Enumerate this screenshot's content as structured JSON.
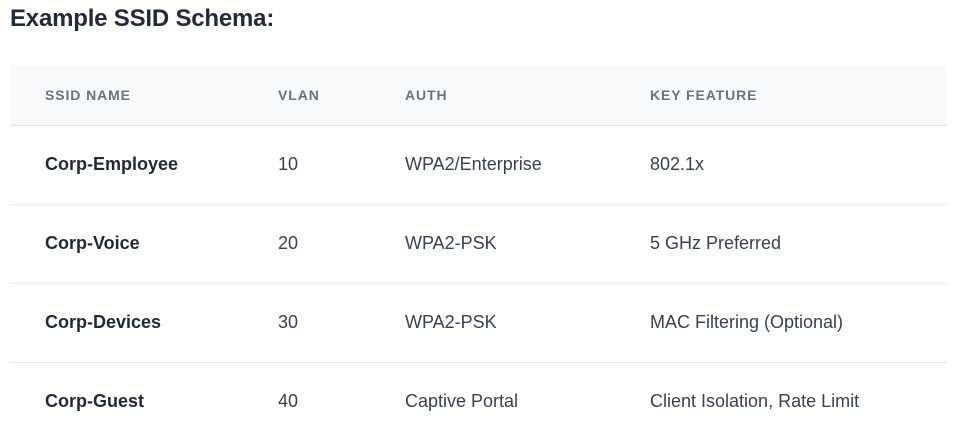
{
  "page": {
    "title": "Example SSID Schema:"
  },
  "table": {
    "columns": [
      "SSID NAME",
      "VLAN",
      "AUTH",
      "KEY FEATURE"
    ],
    "rows": [
      {
        "ssid": "Corp-Employee",
        "vlan": "10",
        "auth": "WPA2/Enterprise",
        "key_feature": "802.1x"
      },
      {
        "ssid": "Corp-Voice",
        "vlan": "20",
        "auth": "WPA2-PSK",
        "key_feature": "5 GHz Preferred"
      },
      {
        "ssid": "Corp-Devices",
        "vlan": "30",
        "auth": "WPA2-PSK",
        "key_feature": "MAC Filtering (Optional)"
      },
      {
        "ssid": "Corp-Guest",
        "vlan": "40",
        "auth": "Captive Portal",
        "key_feature": "Client Isolation, Rate Limit"
      }
    ]
  },
  "colors": {
    "title_text": "#212b3b",
    "header_background": "#f8f9fb",
    "header_text": "#6b7280",
    "cell_text": "#374151",
    "ssid_text": "#1f2937",
    "row_divider": "#e7e9ec"
  }
}
